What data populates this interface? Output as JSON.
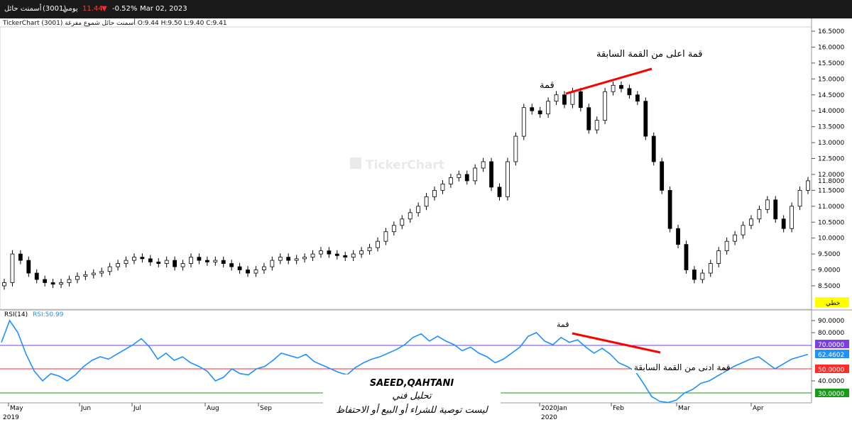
{
  "topbar": {
    "company": "أسمنت حائل",
    "code": "(3001)",
    "period": "يومي",
    "price": "11.44",
    "change": "-0.52%",
    "date": "Mar 02, 2023",
    "down_arrow_icon": "triangle-down"
  },
  "subtitle": "TickerChart أسمنت حائل شموع مفرغة (3001) O:9.44  H:9.50  L:9.40  C:9.41",
  "watermark": "TickerChart",
  "price_panel": {
    "yticks": [
      "16.5000",
      "16.0000",
      "15.5000",
      "15.0000",
      "14.5000",
      "14.0000",
      "13.5000",
      "13.0000",
      "12.5000",
      "12.0000",
      "11.5000",
      "11.0000",
      "10.5000",
      "10.0000",
      "9.5000",
      "9.0000",
      "8.5000"
    ],
    "last_price_label": "11.8000",
    "button_label": "خطي",
    "annotation_peak": "قمة",
    "annotation_higher_high": "قمة اعلى من القمة السابقة"
  },
  "rsi_panel": {
    "title": "RSI(14)",
    "value_label": "RSI:50.99",
    "yticks": [
      "90.0000",
      "80.0000",
      "40.0000"
    ],
    "level_70": "70.0000",
    "level_50": "50.0000",
    "level_30": "30.0000",
    "current": "62.4602",
    "annotation_peak": "قمة",
    "annotation_lower_high": "قمة ادنى من القمة السابقة"
  },
  "xaxis": {
    "months": [
      "May",
      "Jun",
      "Jul",
      "Aug",
      "Sep",
      "2020Jan",
      "Feb",
      "Mar",
      "Apr"
    ],
    "years": [
      "2019",
      "2020"
    ]
  },
  "overlay": {
    "author": "SAEED,QAHTANI",
    "line1": "تحليل فني",
    "line2": "ليست توصية للشراء أو البيع أو الاحتفاظ"
  },
  "colors": {
    "bull": "#ffffff",
    "bear": "#000000",
    "rsi_line": "#1e90ff",
    "trend_line": "#ff0000",
    "level_70": "#7b3fe4",
    "level_50": "#ff2a2a",
    "level_30": "#1a9a1a",
    "label_yellow": "#ffff00",
    "label_blue": "#1e90ff"
  },
  "chart_data": [
    {
      "type": "candlestick",
      "title": "أسمنت حائل (3001)",
      "ylim": [
        8.2,
        16.6
      ],
      "ohlc_close": [
        8.6,
        9.5,
        9.3,
        8.9,
        8.7,
        8.6,
        8.55,
        8.6,
        8.7,
        8.8,
        8.85,
        8.9,
        8.95,
        9.1,
        9.2,
        9.3,
        9.4,
        9.35,
        9.25,
        9.2,
        9.3,
        9.1,
        9.2,
        9.4,
        9.3,
        9.25,
        9.3,
        9.2,
        9.1,
        9.0,
        8.9,
        9.0,
        9.1,
        9.3,
        9.4,
        9.3,
        9.35,
        9.4,
        9.5,
        9.6,
        9.5,
        9.45,
        9.4,
        9.5,
        9.6,
        9.7,
        9.9,
        10.2,
        10.4,
        10.6,
        10.8,
        11.0,
        11.3,
        11.5,
        11.7,
        11.9,
        12.0,
        11.8,
        12.2,
        12.4,
        11.6,
        11.3,
        12.4,
        13.2,
        14.1,
        14.0,
        13.9,
        14.3,
        14.5,
        14.2,
        14.6,
        14.1,
        13.4,
        13.7,
        14.6,
        14.8,
        14.7,
        14.5,
        14.3,
        13.2,
        12.4,
        11.5,
        10.3,
        9.8,
        9.0,
        8.7,
        8.9,
        9.2,
        9.6,
        9.9,
        10.1,
        10.4,
        10.6,
        10.9,
        11.2,
        10.6,
        10.3,
        11.0,
        11.5,
        11.8
      ]
    },
    {
      "type": "line",
      "title": "RSI(14)",
      "ylim": [
        20,
        95
      ],
      "reference_lines": [
        70,
        50,
        30
      ],
      "values": [
        72,
        90,
        80,
        62,
        48,
        40,
        46,
        44,
        40,
        45,
        52,
        57,
        60,
        58,
        62,
        66,
        70,
        75,
        68,
        58,
        63,
        57,
        60,
        55,
        52,
        48,
        40,
        43,
        50,
        46,
        45,
        50,
        52,
        57,
        63,
        61,
        59,
        62,
        56,
        53,
        50,
        47,
        45,
        51,
        55,
        58,
        60,
        63,
        66,
        70,
        76,
        79,
        73,
        77,
        73,
        70,
        65,
        68,
        63,
        60,
        55,
        58,
        63,
        68,
        77,
        80,
        73,
        70,
        76,
        72,
        74,
        68,
        63,
        67,
        62,
        55,
        52,
        48,
        38,
        27,
        23,
        22,
        24,
        30,
        33,
        38,
        40,
        44,
        48,
        52,
        55,
        58,
        60,
        55,
        50,
        54,
        58,
        60,
        62
      ]
    }
  ]
}
